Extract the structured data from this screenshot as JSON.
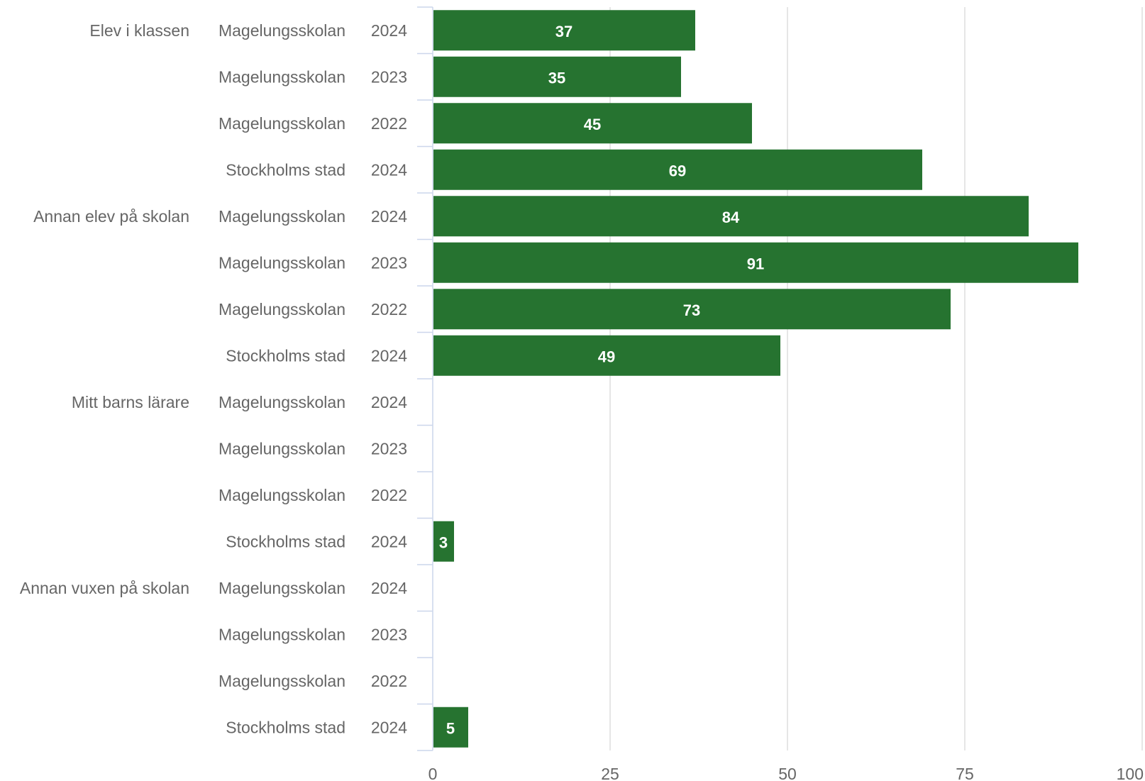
{
  "chart_data": {
    "type": "bar",
    "orientation": "horizontal",
    "xlim": [
      0,
      100
    ],
    "x_ticks": [
      "0",
      "25",
      "50",
      "75",
      "100"
    ],
    "grid": true,
    "bar_color": "#267330",
    "groups": [
      {
        "label": "Elev i klassen",
        "rows": [
          {
            "org": "Magelungsskolan",
            "year": "2024",
            "value": 37,
            "label": "37"
          },
          {
            "org": "Magelungsskolan",
            "year": "2023",
            "value": 35,
            "label": "35"
          },
          {
            "org": "Magelungsskolan",
            "year": "2022",
            "value": 45,
            "label": "45"
          },
          {
            "org": "Stockholms stad",
            "year": "2024",
            "value": 69,
            "label": "69"
          }
        ]
      },
      {
        "label": "Annan elev på skolan",
        "rows": [
          {
            "org": "Magelungsskolan",
            "year": "2024",
            "value": 84,
            "label": "84"
          },
          {
            "org": "Magelungsskolan",
            "year": "2023",
            "value": 91,
            "label": "91"
          },
          {
            "org": "Magelungsskolan",
            "year": "2022",
            "value": 73,
            "label": "73"
          },
          {
            "org": "Stockholms stad",
            "year": "2024",
            "value": 49,
            "label": "49"
          }
        ]
      },
      {
        "label": "Mitt barns lärare",
        "rows": [
          {
            "org": "Magelungsskolan",
            "year": "2024",
            "value": null,
            "label": ""
          },
          {
            "org": "Magelungsskolan",
            "year": "2023",
            "value": null,
            "label": ""
          },
          {
            "org": "Magelungsskolan",
            "year": "2022",
            "value": null,
            "label": ""
          },
          {
            "org": "Stockholms stad",
            "year": "2024",
            "value": 3,
            "label": "3"
          }
        ]
      },
      {
        "label": "Annan vuxen på skolan",
        "rows": [
          {
            "org": "Magelungsskolan",
            "year": "2024",
            "value": null,
            "label": ""
          },
          {
            "org": "Magelungsskolan",
            "year": "2023",
            "value": null,
            "label": ""
          },
          {
            "org": "Magelungsskolan",
            "year": "2022",
            "value": null,
            "label": ""
          },
          {
            "org": "Stockholms stad",
            "year": "2024",
            "value": 5,
            "label": "5"
          }
        ]
      }
    ]
  }
}
